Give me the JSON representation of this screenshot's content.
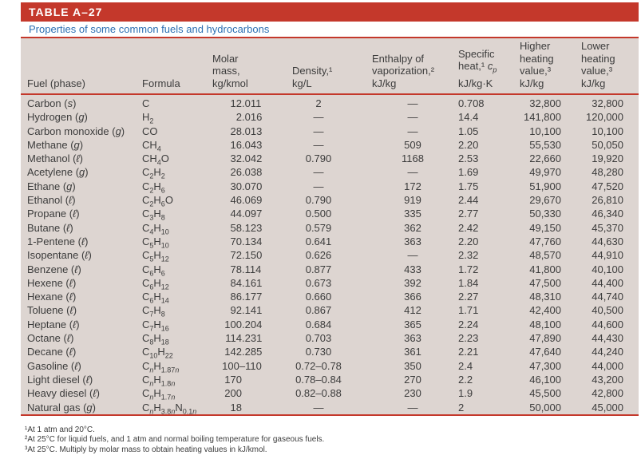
{
  "colors": {
    "accent_red": "#c4382b",
    "panel_bg": "#ddd5d1",
    "subtitle_blue": "#2b6fb3",
    "text": "#3c3c3c"
  },
  "table": {
    "id": "TABLE A–27",
    "subtitle": "Properties of some common fuels and hydrocarbons",
    "columns": [
      {
        "key": "fuel",
        "label_lines": [
          "Fuel (phase)"
        ]
      },
      {
        "key": "formula",
        "label_lines": [
          "Formula"
        ]
      },
      {
        "key": "molar_mass",
        "label_lines": [
          "Molar",
          "mass,",
          "kg/kmol"
        ]
      },
      {
        "key": "density",
        "label_lines": [
          "Density,¹",
          "kg/L"
        ]
      },
      {
        "key": "enthalpy_vap",
        "label_lines": [
          "Enthalpy of",
          "vaporization,²",
          "kJ/kg"
        ]
      },
      {
        "key": "specific_heat",
        "label_lines": [
          "Specific",
          "heat,¹ *c*_{*p*}",
          "kJ/kg·K"
        ]
      },
      {
        "key": "hhv",
        "label_lines": [
          "Higher",
          "heating",
          "value,³",
          "kJ/kg"
        ]
      },
      {
        "key": "lhv",
        "label_lines": [
          "Lower",
          "heating",
          "value,³",
          "kJ/kg"
        ]
      }
    ],
    "rows": [
      [
        "Carbon (*s*)",
        "C",
        "12.011",
        "2",
        "—",
        "0.708",
        "32,800",
        "32,800"
      ],
      [
        "Hydrogen (*g*)",
        "H_{2}",
        "2.016",
        "—",
        "—",
        "14.4",
        "141,800",
        "120,000"
      ],
      [
        "Carbon monoxide (*g*)",
        "CO",
        "28.013",
        "—",
        "—",
        "1.05",
        "10,100",
        "10,100"
      ],
      [
        "Methane (*g*)",
        "CH_{4}",
        "16.043",
        "—",
        "509",
        "2.20",
        "55,530",
        "50,050"
      ],
      [
        "Methanol (*ℓ*)",
        "CH_{4}O",
        "32.042",
        "0.790",
        "1168",
        "2.53",
        "22,660",
        "19,920"
      ],
      [
        "Acetylene (*g*)",
        "C_{2}H_{2}",
        "26.038",
        "—",
        "—",
        "1.69",
        "49,970",
        "48,280"
      ],
      [
        "Ethane (*g*)",
        "C_{2}H_{6}",
        "30.070",
        "—",
        "172",
        "1.75",
        "51,900",
        "47,520"
      ],
      [
        "Ethanol (*ℓ*)",
        "C_{2}H_{6}O",
        "46.069",
        "0.790",
        "919",
        "2.44",
        "29,670",
        "26,810"
      ],
      [
        "Propane (*ℓ*)",
        "C_{3}H_{8}",
        "44.097",
        "0.500",
        "335",
        "2.77",
        "50,330",
        "46,340"
      ],
      [
        "Butane (*ℓ*)",
        "C_{4}H_{10}",
        "58.123",
        "0.579",
        "362",
        "2.42",
        "49,150",
        "45,370"
      ],
      [
        "1-Pentene (*ℓ*)",
        "C_{5}H_{10}",
        "70.134",
        "0.641",
        "363",
        "2.20",
        "47,760",
        "44,630"
      ],
      [
        "Isopentane (*ℓ*)",
        "C_{5}H_{12}",
        "72.150",
        "0.626",
        "—",
        "2.32",
        "48,570",
        "44,910"
      ],
      [
        "Benzene (*ℓ*)",
        "C_{6}H_{6}",
        "78.114",
        "0.877",
        "433",
        "1.72",
        "41,800",
        "40,100"
      ],
      [
        "Hexene (*ℓ*)",
        "C_{6}H_{12}",
        "84.161",
        "0.673",
        "392",
        "1.84",
        "47,500",
        "44,400"
      ],
      [
        "Hexane (*ℓ*)",
        "C_{6}H_{14}",
        "86.177",
        "0.660",
        "366",
        "2.27",
        "48,310",
        "44,740"
      ],
      [
        "Toluene (*ℓ*)",
        "C_{7}H_{8}",
        "92.141",
        "0.867",
        "412",
        "1.71",
        "42,400",
        "40,500"
      ],
      [
        "Heptane (*ℓ*)",
        "C_{7}H_{16}",
        "100.204",
        "0.684",
        "365",
        "2.24",
        "48,100",
        "44,600"
      ],
      [
        "Octane (*ℓ*)",
        "C_{8}H_{18}",
        "114.231",
        "0.703",
        "363",
        "2.23",
        "47,890",
        "44,430"
      ],
      [
        "Decane (*ℓ*)",
        "C_{10}H_{22}",
        "142.285",
        "0.730",
        "361",
        "2.21",
        "47,640",
        "44,240"
      ],
      [
        "Gasoline (*ℓ*)",
        "C_{*n*}H_{1.87*n*}",
        "100–110",
        "0.72–0.78",
        "350",
        "2.4",
        "47,300",
        "44,000"
      ],
      [
        "Light diesel (*ℓ*)",
        "C_{*n*}H_{1.8*n*}",
        "170",
        "0.78–0.84",
        "270",
        "2.2",
        "46,100",
        "43,200"
      ],
      [
        "Heavy diesel (*ℓ*)",
        "C_{*n*}H_{1.7*n*}",
        "200",
        "0.82–0.88",
        "230",
        "1.9",
        "45,500",
        "42,800"
      ],
      [
        "Natural gas (*g*)",
        "C_{*n*}H_{3.8*n*}N_{0.1*n*}",
        "18",
        "—",
        "—",
        "2",
        "50,000",
        "45,000"
      ]
    ],
    "footnotes": [
      "¹At 1 atm and 20°C.",
      "²At 25°C for liquid fuels, and 1 atm and normal boiling temperature for gaseous fuels.",
      "³At 25°C. Multiply by molar mass to obtain heating values in kJ/kmol."
    ]
  }
}
